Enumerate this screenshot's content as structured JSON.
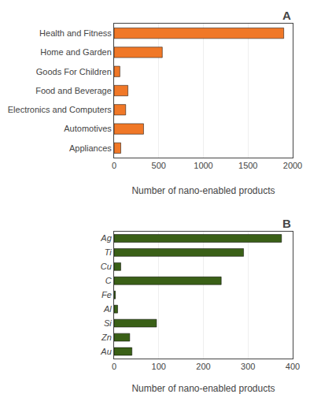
{
  "chart_data": [
    {
      "type": "bar",
      "orientation": "horizontal",
      "categories": [
        "Health and Fitness",
        "Home and Garden",
        "Goods For Children",
        "Food and Beverage",
        "Electronics and Computers",
        "Automotives",
        "Appliances"
      ],
      "values": [
        1900,
        540,
        65,
        155,
        130,
        330,
        75
      ],
      "color": "#F07828",
      "xlabel": "Number of nano-enabled products",
      "xlim": [
        0,
        2000
      ],
      "xticks": [
        0,
        500,
        1000,
        1500,
        2000
      ],
      "grid": true,
      "annotations": [
        "A"
      ]
    },
    {
      "type": "bar",
      "orientation": "horizontal",
      "categories": [
        "Ag",
        "Ti",
        "Cu",
        "C",
        "Fe",
        "Al",
        "Si",
        "Zn",
        "Au"
      ],
      "values": [
        375,
        290,
        15,
        240,
        3,
        8,
        95,
        35,
        40
      ],
      "color": "#3A6017",
      "xlabel": "Number of nano-enabled products",
      "xlim": [
        0,
        400
      ],
      "xticks": [
        0,
        100,
        200,
        300,
        400
      ],
      "grid": true,
      "annotations": [
        "B"
      ]
    }
  ]
}
